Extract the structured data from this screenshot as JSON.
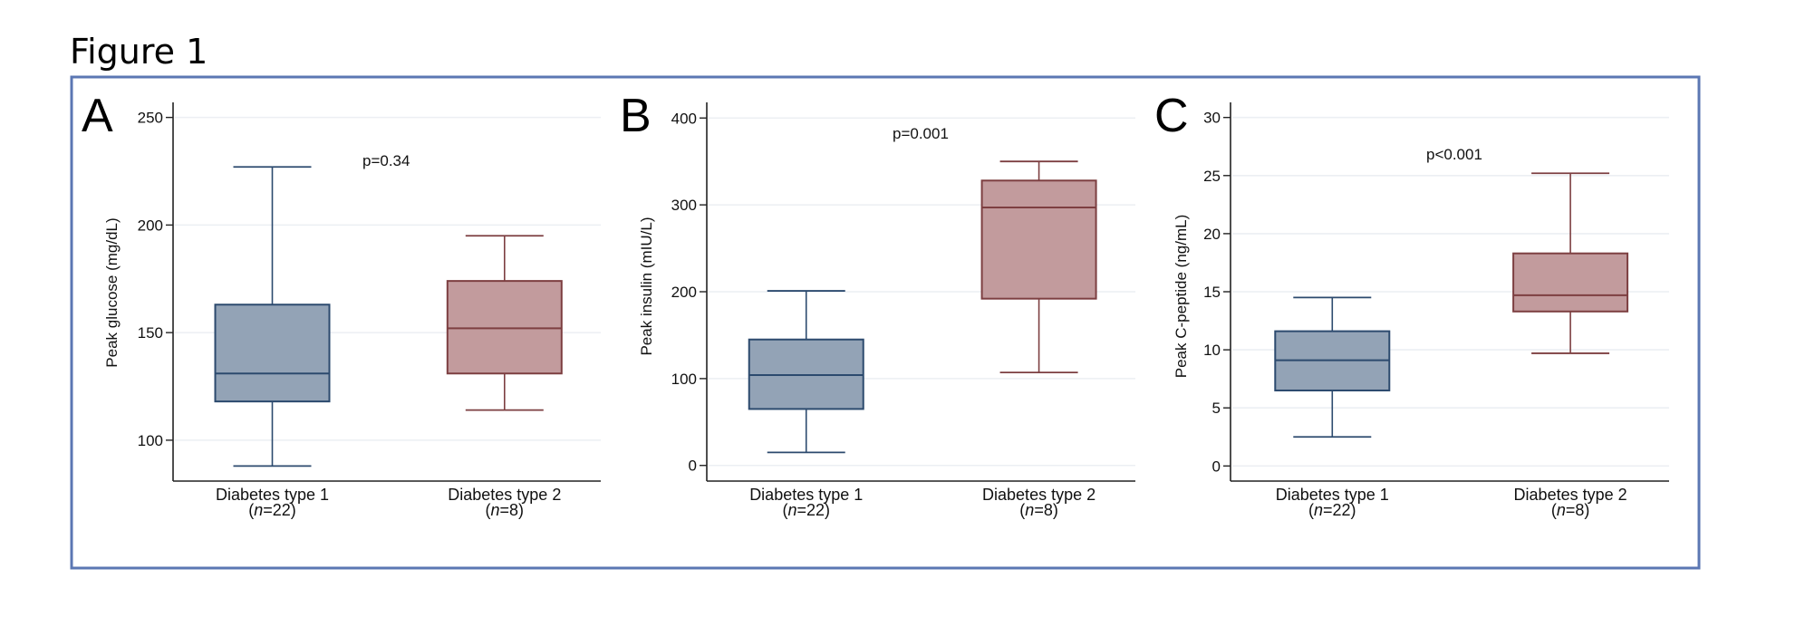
{
  "figure_title": "Figure 1",
  "colors": {
    "frame": "#5b77b3",
    "type1_fill": "#93a3b6",
    "type1_stroke": "#2c4a6e",
    "type2_fill": "#c29b9d",
    "type2_stroke": "#7d3f41",
    "grid": "#eceff3"
  },
  "panels": [
    {
      "letter": "A",
      "ylabel": "Peak glucose (mg/dL)",
      "pvalue": "p=0.34",
      "ticks": [
        "250",
        "200",
        "150",
        "100"
      ]
    },
    {
      "letter": "B",
      "ylabel": "Peak insulin (mIU/L)",
      "pvalue": "p=0.001",
      "ticks": [
        "400",
        "300",
        "200",
        "100",
        "0"
      ]
    },
    {
      "letter": "C",
      "ylabel": "Peak C-peptide (ng/mL)",
      "pvalue": "p<0.001",
      "ticks": [
        "30",
        "25",
        "20",
        "15",
        "10",
        "5",
        "0"
      ]
    }
  ],
  "categories": [
    {
      "name": "Diabetes type 1",
      "n_prefix": "(",
      "n_var": "n",
      "n_value": "=22)"
    },
    {
      "name": "Diabetes type 2",
      "n_prefix": "(",
      "n_var": "n",
      "n_value": "=8)"
    }
  ],
  "chart_data": [
    {
      "type": "box",
      "panel": "A",
      "title": "",
      "xlabel": "",
      "ylabel": "Peak glucose (mg/dL)",
      "categories": [
        "Diabetes type 1 (n=22)",
        "Diabetes type 2 (n=8)"
      ],
      "yticks": [
        100,
        150,
        200,
        250
      ],
      "ylim": [
        81,
        257
      ],
      "grid": true,
      "annotation": "p=0.34",
      "series": [
        {
          "name": "Diabetes type 1",
          "min": 88,
          "q1": 118,
          "median": 131,
          "q3": 163,
          "max": 227
        },
        {
          "name": "Diabetes type 2",
          "min": 114,
          "q1": 131,
          "median": 152,
          "q3": 174,
          "max": 195
        }
      ]
    },
    {
      "type": "box",
      "panel": "B",
      "title": "",
      "xlabel": "",
      "ylabel": "Peak insulin (mIU/L)",
      "categories": [
        "Diabetes type 1 (n=22)",
        "Diabetes type 2 (n=8)"
      ],
      "yticks": [
        0,
        100,
        200,
        300,
        400
      ],
      "ylim": [
        -18,
        418
      ],
      "grid": true,
      "annotation": "p=0.001",
      "series": [
        {
          "name": "Diabetes type 1",
          "min": 15,
          "q1": 65,
          "median": 104,
          "q3": 145,
          "max": 201
        },
        {
          "name": "Diabetes type 2",
          "min": 107,
          "q1": 192,
          "median": 297,
          "q3": 328,
          "max": 350
        }
      ]
    },
    {
      "type": "box",
      "panel": "C",
      "title": "",
      "xlabel": "",
      "ylabel": "Peak C-peptide (ng/mL)",
      "categories": [
        "Diabetes type 1 (n=22)",
        "Diabetes type 2 (n=8)"
      ],
      "yticks": [
        0,
        5,
        10,
        15,
        20,
        25,
        30
      ],
      "ylim": [
        -1.3,
        31.3
      ],
      "grid": true,
      "annotation": "p<0.001",
      "series": [
        {
          "name": "Diabetes type 1",
          "min": 2.5,
          "q1": 6.5,
          "median": 9.1,
          "q3": 11.6,
          "max": 14.5
        },
        {
          "name": "Diabetes type 2",
          "min": 9.7,
          "q1": 13.3,
          "median": 14.7,
          "q3": 18.3,
          "max": 25.2
        }
      ]
    }
  ]
}
